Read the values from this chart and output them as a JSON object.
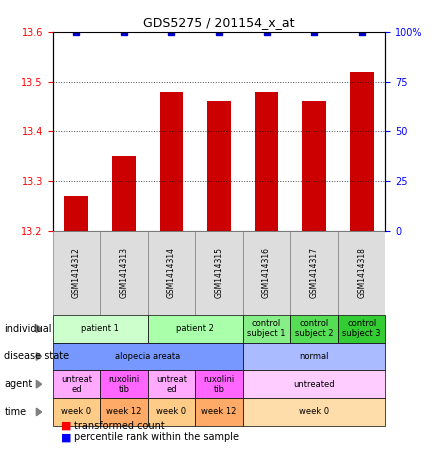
{
  "title": "GDS5275 / 201154_x_at",
  "samples": [
    "GSM1414312",
    "GSM1414313",
    "GSM1414314",
    "GSM1414315",
    "GSM1414316",
    "GSM1414317",
    "GSM1414318"
  ],
  "bar_values": [
    13.27,
    13.35,
    13.48,
    13.46,
    13.48,
    13.46,
    13.52
  ],
  "bar_color": "#cc0000",
  "dot_values": [
    100,
    100,
    100,
    100,
    100,
    100,
    100
  ],
  "dot_color": "#0000cc",
  "ylim": [
    13.2,
    13.6
  ],
  "yticks": [
    13.2,
    13.3,
    13.4,
    13.5,
    13.6
  ],
  "y2lim": [
    0,
    100
  ],
  "y2ticks": [
    0,
    25,
    50,
    75,
    100
  ],
  "y2ticklabels": [
    "0",
    "25",
    "50",
    "75",
    "100%"
  ],
  "annotation_rows": [
    {
      "label": "individual",
      "groups": [
        {
          "cols": [
            0,
            1
          ],
          "text": "patient 1",
          "color": "#ccffcc"
        },
        {
          "cols": [
            2,
            3
          ],
          "text": "patient 2",
          "color": "#aaffaa"
        },
        {
          "cols": [
            4
          ],
          "text": "control\nsubject 1",
          "color": "#88ee88"
        },
        {
          "cols": [
            5
          ],
          "text": "control\nsubject 2",
          "color": "#55dd55"
        },
        {
          "cols": [
            6
          ],
          "text": "control\nsubject 3",
          "color": "#33cc33"
        }
      ]
    },
    {
      "label": "disease state",
      "groups": [
        {
          "cols": [
            0,
            1,
            2,
            3
          ],
          "text": "alopecia areata",
          "color": "#7799ff"
        },
        {
          "cols": [
            4,
            5,
            6
          ],
          "text": "normal",
          "color": "#aabbff"
        }
      ]
    },
    {
      "label": "agent",
      "groups": [
        {
          "cols": [
            0
          ],
          "text": "untreat\ned",
          "color": "#ffaaff"
        },
        {
          "cols": [
            1
          ],
          "text": "ruxolini\ntib",
          "color": "#ff66ff"
        },
        {
          "cols": [
            2
          ],
          "text": "untreat\ned",
          "color": "#ffaaff"
        },
        {
          "cols": [
            3
          ],
          "text": "ruxolini\ntib",
          "color": "#ff66ff"
        },
        {
          "cols": [
            4,
            5,
            6
          ],
          "text": "untreated",
          "color": "#ffccff"
        }
      ]
    },
    {
      "label": "time",
      "groups": [
        {
          "cols": [
            0
          ],
          "text": "week 0",
          "color": "#ffcc88"
        },
        {
          "cols": [
            1
          ],
          "text": "week 12",
          "color": "#ffaa66"
        },
        {
          "cols": [
            2
          ],
          "text": "week 0",
          "color": "#ffcc88"
        },
        {
          "cols": [
            3
          ],
          "text": "week 12",
          "color": "#ffaa66"
        },
        {
          "cols": [
            4,
            5,
            6
          ],
          "text": "week 0",
          "color": "#ffddaa"
        }
      ]
    }
  ]
}
